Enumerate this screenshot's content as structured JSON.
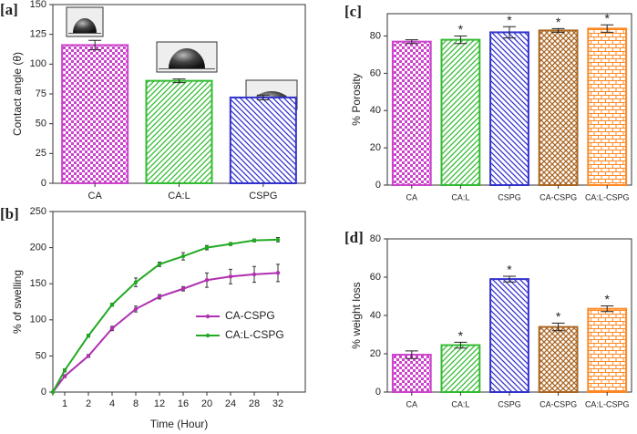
{
  "chart_data": [
    {
      "type": "bar",
      "panel_label": "[a]",
      "ylabel": "Contact angle (θ)",
      "categories": [
        "CA",
        "CA:L",
        "CSPG"
      ],
      "values": [
        116,
        86,
        72
      ],
      "errors": [
        4,
        1.5,
        2
      ],
      "colors": [
        "#cc44cc",
        "#33bb33",
        "#3333cc"
      ],
      "ylim": [
        0,
        150
      ],
      "yticks": [
        0,
        25,
        50,
        75,
        100,
        125,
        150
      ]
    },
    {
      "type": "line",
      "panel_label": "[b]",
      "xlabel": "Time (Hour)",
      "ylabel": "% of swelling",
      "categories": [
        null,
        "1",
        "2",
        "4",
        "8",
        "12",
        "16",
        "20",
        "24",
        "28",
        "32"
      ],
      "series": [
        {
          "name": "CA-CSPG",
          "color": "#b030b0",
          "values": [
            0,
            22,
            50,
            88,
            115,
            132,
            143,
            155,
            160,
            163,
            165
          ],
          "errors": [
            0,
            2,
            2,
            3,
            4,
            3,
            3,
            10,
            10,
            11,
            12
          ]
        },
        {
          "name": "CA:L-CSPG",
          "color": "#22aa22",
          "values": [
            0,
            30,
            78,
            121,
            152,
            177,
            188,
            200,
            205,
            210,
            211
          ],
          "errors": [
            0,
            2,
            2,
            2,
            6,
            3,
            5,
            3,
            2,
            2,
            3
          ]
        }
      ],
      "ylim": [
        0,
        250
      ],
      "yticks": [
        0,
        50,
        100,
        150,
        200,
        250
      ],
      "legend": "center right"
    },
    {
      "type": "bar",
      "panel_label": "[c]",
      "ylabel": "% Porosity",
      "categories": [
        "CA",
        "CA:L",
        "CSPG",
        "CA-CSPG",
        "CA:L-CSPG"
      ],
      "values": [
        77,
        78,
        82,
        83,
        84
      ],
      "errors": [
        1,
        2,
        3,
        1,
        2
      ],
      "colors": [
        "#cc44cc",
        "#33bb33",
        "#3333cc",
        "#aa6622",
        "#ff8822"
      ],
      "significance": [
        false,
        true,
        true,
        true,
        true
      ],
      "significance_mark": "*",
      "ylim": [
        0,
        92
      ],
      "yticks": [
        0,
        20,
        40,
        60,
        80
      ]
    },
    {
      "type": "bar",
      "panel_label": "[d]",
      "ylabel": "% weight loss",
      "categories": [
        "CA",
        "CA:L",
        "CSPG",
        "CA-CSPG",
        "CA:L-CSPG"
      ],
      "values": [
        19.5,
        24.5,
        59,
        34,
        43.5
      ],
      "errors": [
        2,
        1.5,
        1.5,
        2,
        1.5
      ],
      "colors": [
        "#cc44cc",
        "#33bb33",
        "#3333cc",
        "#aa6622",
        "#ff8822"
      ],
      "significance": [
        false,
        true,
        true,
        true,
        true
      ],
      "significance_mark": "*",
      "ylim": [
        0,
        80
      ],
      "yticks": [
        0,
        20,
        40,
        60,
        80
      ]
    }
  ]
}
